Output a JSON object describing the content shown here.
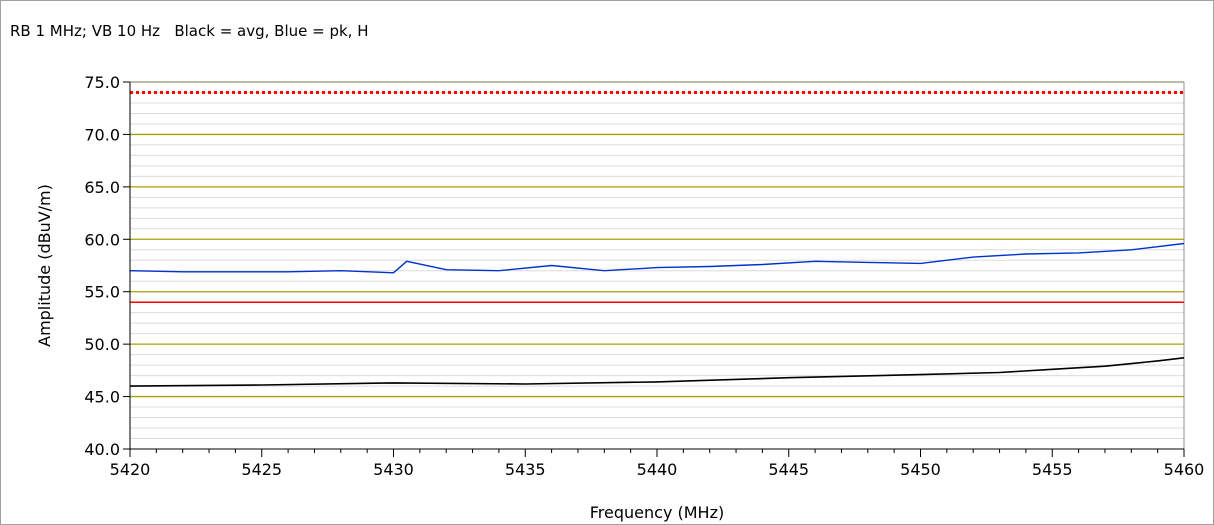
{
  "caption": "RB 1 MHz; VB 10 Hz   Black = avg, Blue = pk, H",
  "chart_data": {
    "type": "line",
    "xlabel": "Frequency (MHz)",
    "ylabel": "Amplitude (dBuV/m)",
    "xlim": [
      5420,
      5460
    ],
    "ylim": [
      40,
      75
    ],
    "x_ticks": [
      5420,
      5425,
      5430,
      5435,
      5440,
      5445,
      5450,
      5455,
      5460
    ],
    "y_ticks": [
      40.0,
      45.0,
      50.0,
      55.0,
      60.0,
      65.0,
      70.0,
      75.0
    ],
    "y_tick_labels": [
      "40.0",
      "45.0",
      "50.0",
      "55.0",
      "60.0",
      "65.0",
      "70.0",
      "75.0"
    ],
    "x_minor_step": 1,
    "y_minor_step": 1,
    "major_grid_color": "#a8a000",
    "minor_grid_color": "#dcdcdc",
    "limit_lines": [
      {
        "y": 74.0,
        "style": "dotted",
        "color": "#ff0000"
      },
      {
        "y": 54.0,
        "style": "solid",
        "color": "#ff0000"
      }
    ],
    "series": [
      {
        "color": "#0033cc",
        "x": [
          5420,
          5422,
          5424,
          5426,
          5428,
          5430,
          5430.5,
          5432,
          5434,
          5436,
          5438,
          5440,
          5442,
          5444,
          5446,
          5448,
          5450,
          5452,
          5454,
          5456,
          5458,
          5460
        ],
        "y": [
          57.0,
          56.9,
          56.9,
          56.9,
          57.0,
          56.8,
          57.9,
          57.1,
          57.0,
          57.5,
          57.0,
          57.3,
          57.4,
          57.6,
          57.9,
          57.8,
          57.7,
          58.3,
          58.6,
          58.7,
          59.0,
          59.6
        ]
      },
      {
        "color": "#000000",
        "x": [
          5420,
          5425,
          5430,
          5435,
          5440,
          5445,
          5450,
          5453,
          5455,
          5457,
          5459,
          5460
        ],
        "y": [
          46.0,
          46.1,
          46.3,
          46.2,
          46.4,
          46.8,
          47.1,
          47.3,
          47.6,
          47.9,
          48.4,
          48.7
        ]
      }
    ]
  }
}
